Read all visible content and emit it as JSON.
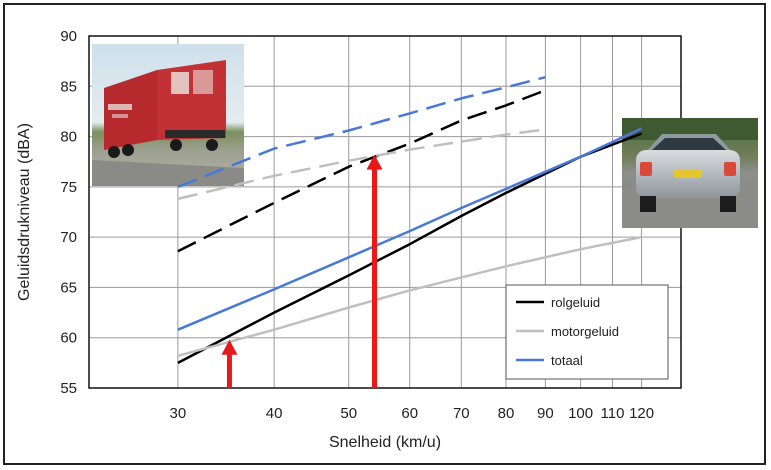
{
  "chart_data": {
    "type": "line",
    "xlabel": "Snelheid (km/u)",
    "ylabel": "Geluidsdrukniveau (dBA)",
    "x_scale": "log",
    "xlim": [
      23,
      135
    ],
    "ylim": [
      55,
      90
    ],
    "x_ticks": [
      30,
      40,
      50,
      60,
      70,
      80,
      90,
      100,
      110,
      120
    ],
    "y_ticks": [
      55,
      60,
      65,
      70,
      75,
      80,
      85,
      90
    ],
    "grid": true,
    "legend_position": "bottom-right",
    "legend": [
      {
        "label": "rolgeluid",
        "color": "#000000"
      },
      {
        "label": "motorgeluid",
        "color": "#bfbfbf"
      },
      {
        "label": "totaal",
        "color": "#4a78d9"
      }
    ],
    "series": [
      {
        "name": "rolgeluid",
        "group": "personenauto",
        "dash": "solid",
        "color": "#000000",
        "x": [
          30,
          40,
          50,
          60,
          70,
          80,
          90,
          100,
          120
        ],
        "y": [
          57.5,
          62.5,
          66.2,
          69.3,
          72.1,
          74.4,
          76.3,
          78.0,
          80.3
        ]
      },
      {
        "name": "motorgeluid",
        "group": "personenauto",
        "dash": "solid",
        "color": "#bfbfbf",
        "x": [
          30,
          40,
          50,
          60,
          70,
          80,
          90,
          100,
          120
        ],
        "y": [
          58.2,
          60.8,
          63.0,
          64.7,
          66.0,
          67.1,
          68.0,
          68.8,
          70.0
        ]
      },
      {
        "name": "totaal",
        "group": "personenauto",
        "dash": "solid",
        "color": "#4a78d9",
        "x": [
          30,
          40,
          50,
          60,
          70,
          80,
          90,
          100,
          120
        ],
        "y": [
          60.8,
          64.8,
          68.0,
          70.6,
          72.9,
          74.8,
          76.5,
          78.0,
          80.8
        ]
      },
      {
        "name": "rolgeluid",
        "group": "vrachtwagen",
        "dash": "dashed",
        "color": "#000000",
        "x": [
          30,
          40,
          50,
          60,
          70,
          80,
          90
        ],
        "y": [
          68.6,
          73.4,
          77.0,
          79.3,
          81.6,
          83.1,
          84.6
        ]
      },
      {
        "name": "motorgeluid",
        "group": "vrachtwagen",
        "dash": "dashed",
        "color": "#bfbfbf",
        "x": [
          30,
          40,
          50,
          60,
          70,
          80,
          90
        ],
        "y": [
          73.8,
          76.1,
          77.6,
          78.7,
          79.5,
          80.2,
          80.7
        ]
      },
      {
        "name": "totaal",
        "group": "vrachtwagen",
        "dash": "dashed",
        "color": "#4a78d9",
        "x": [
          30,
          40,
          50,
          60,
          70,
          80,
          90
        ],
        "y": [
          75.0,
          78.8,
          80.6,
          82.3,
          83.8,
          84.9,
          85.9
        ]
      }
    ],
    "annotations": [
      {
        "type": "arrow",
        "color": "#e8191a",
        "x": 35,
        "from_y": 55,
        "to_y": 59.6
      },
      {
        "type": "arrow",
        "color": "#e8191a",
        "x": 54,
        "from_y": 55,
        "to_y": 78.0
      }
    ],
    "images": [
      {
        "name": "vrachtwagen-foto",
        "position": "top-left"
      },
      {
        "name": "personenauto-foto",
        "position": "top-right"
      }
    ]
  }
}
